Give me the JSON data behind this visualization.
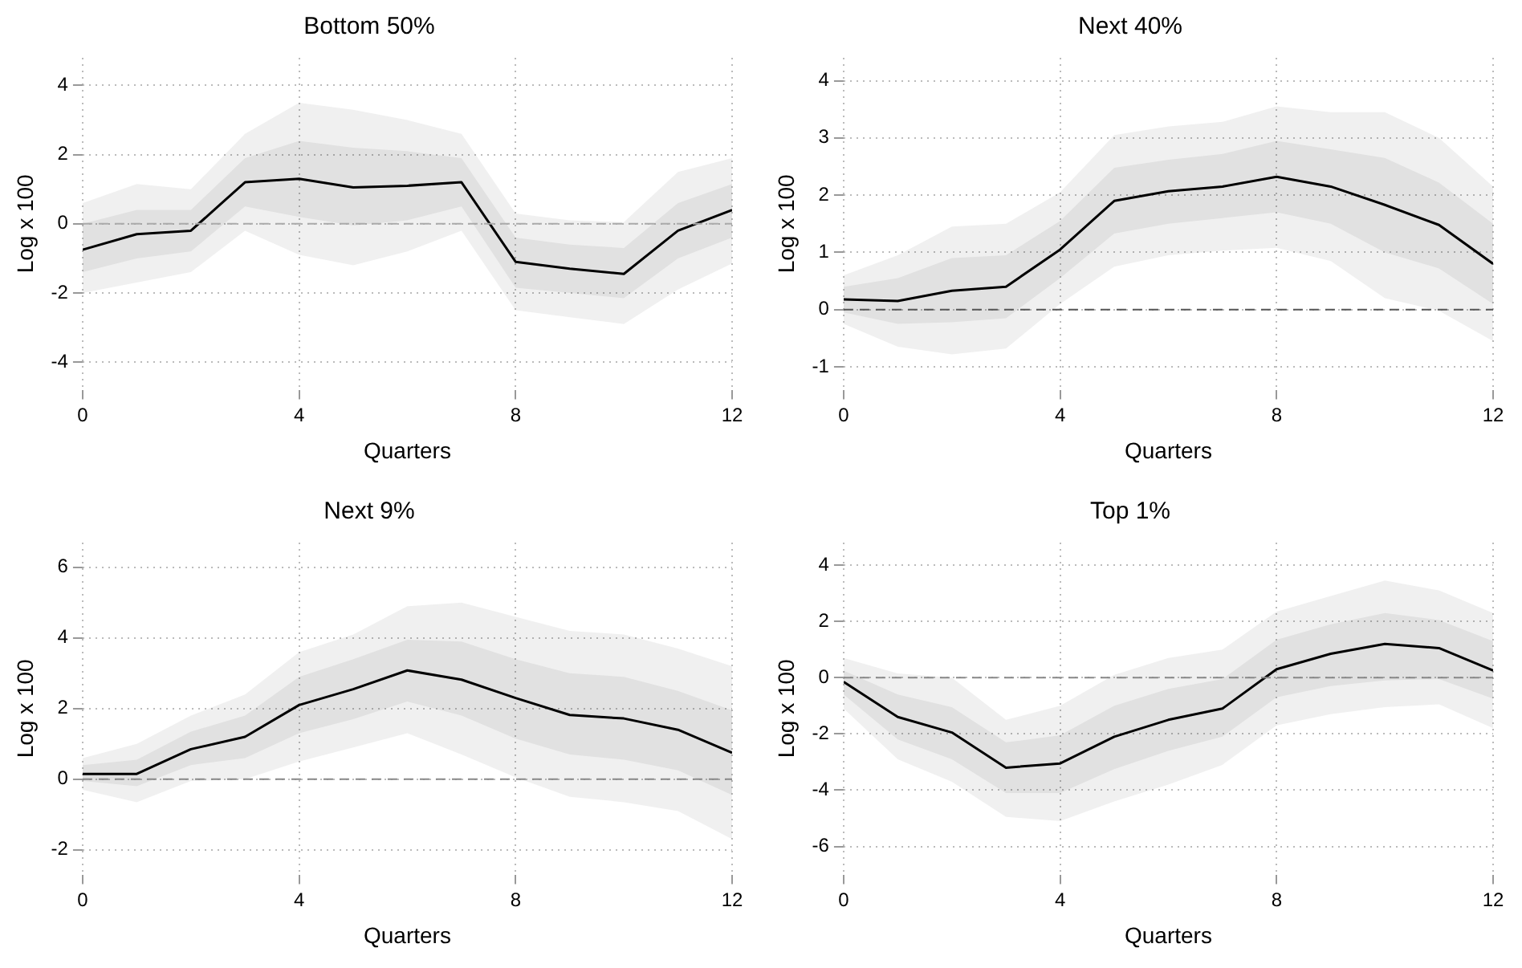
{
  "chart_data": [
    {
      "type": "line",
      "title": "Bottom 50%",
      "xlabel": "Quarters",
      "ylabel": "Log x 100",
      "x": [
        0,
        1,
        2,
        3,
        4,
        5,
        6,
        7,
        8,
        9,
        10,
        11,
        12
      ],
      "xlim": [
        0,
        12
      ],
      "xticks": [
        0,
        4,
        8,
        12
      ],
      "ylim": [
        -4.8,
        4.8
      ],
      "yticks": [
        -4,
        -2,
        0,
        2,
        4
      ],
      "grid": true,
      "legend": false,
      "marker": "none",
      "line_style": "solid",
      "series": [
        {
          "color": "#000000",
          "values": [
            -0.75,
            -0.3,
            -0.2,
            1.2,
            1.3,
            1.05,
            1.1,
            1.2,
            -1.1,
            -1.3,
            -1.45,
            -0.2,
            0.4
          ],
          "lower": [
            -1.4,
            -1.0,
            -0.8,
            0.5,
            0.2,
            -0.05,
            0.1,
            0.5,
            -1.85,
            -2.0,
            -2.15,
            -1.0,
            -0.4
          ],
          "upper": [
            0,
            0.4,
            0.4,
            1.9,
            2.4,
            2.2,
            2.1,
            1.9,
            -0.4,
            -0.6,
            -0.7,
            0.6,
            1.15
          ]
        },
        {
          "color": "#000000",
          "values": [
            null,
            null,
            null,
            null,
            null,
            null,
            null,
            null,
            null,
            null,
            null,
            null,
            null
          ],
          "lower": [
            -2.0,
            -1.7,
            -1.4,
            -0.2,
            -0.9,
            -1.2,
            -0.8,
            -0.2,
            -2.5,
            -2.7,
            -2.9,
            -1.9,
            -1.15
          ],
          "upper": [
            0.6,
            1.15,
            1.0,
            2.6,
            3.5,
            3.3,
            3.0,
            2.6,
            0.3,
            0.1,
            0.05,
            1.5,
            1.9
          ]
        }
      ],
      "ref_lines": [
        {
          "axis": "y",
          "value": 0,
          "color": "#aaaaaa",
          "line_style": "dashed"
        }
      ]
    },
    {
      "type": "line",
      "title": "Next 40%",
      "xlabel": "Quarters",
      "ylabel": "Log x 100",
      "x": [
        0,
        1,
        2,
        3,
        4,
        5,
        6,
        7,
        8,
        9,
        10,
        11,
        12
      ],
      "xlim": [
        0,
        12
      ],
      "xticks": [
        0,
        4,
        8,
        12
      ],
      "ylim": [
        -1.4,
        4.4
      ],
      "yticks": [
        -1,
        0,
        1,
        2,
        3,
        4
      ],
      "grid": true,
      "legend": false,
      "marker": "none",
      "line_style": "solid",
      "series": [
        {
          "color": "#000000",
          "values": [
            0.18,
            0.15,
            0.33,
            0.4,
            1.05,
            1.9,
            2.07,
            2.15,
            2.32,
            2.15,
            1.83,
            1.48,
            0.8
          ],
          "lower": [
            -0.05,
            -0.25,
            -0.22,
            -0.15,
            0.55,
            1.33,
            1.5,
            1.6,
            1.7,
            1.5,
            1.0,
            0.72,
            0.1
          ],
          "upper": [
            0.4,
            0.55,
            0.9,
            0.95,
            1.55,
            2.48,
            2.62,
            2.72,
            2.95,
            2.8,
            2.65,
            2.22,
            1.5
          ]
        },
        {
          "color": "#000000",
          "values": [
            null,
            null,
            null,
            null,
            null,
            null,
            null,
            null,
            null,
            null,
            null,
            null,
            null
          ],
          "lower": [
            -0.25,
            -0.65,
            -0.78,
            -0.68,
            0.1,
            0.75,
            0.95,
            1.03,
            1.08,
            0.85,
            0.2,
            -0.02,
            -0.55
          ],
          "upper": [
            0.6,
            0.95,
            1.45,
            1.5,
            2.05,
            3.05,
            3.2,
            3.28,
            3.55,
            3.45,
            3.45,
            3.0,
            2.15
          ]
        }
      ],
      "ref_lines": [
        {
          "axis": "y",
          "value": 0,
          "color": "#555555",
          "line_style": "dashed"
        }
      ]
    },
    {
      "type": "line",
      "title": "Next 9%",
      "xlabel": "Quarters",
      "ylabel": "Log x 100",
      "x": [
        0,
        1,
        2,
        3,
        4,
        5,
        6,
        7,
        8,
        9,
        10,
        11,
        12
      ],
      "xlim": [
        0,
        12
      ],
      "xticks": [
        0,
        4,
        8,
        12
      ],
      "ylim": [
        -2.7,
        6.7
      ],
      "yticks": [
        -2,
        0,
        2,
        4,
        6
      ],
      "grid": true,
      "legend": false,
      "marker": "none",
      "line_style": "solid",
      "series": [
        {
          "color": "#000000",
          "values": [
            0.15,
            0.15,
            0.85,
            1.2,
            2.1,
            2.55,
            3.08,
            2.82,
            2.3,
            1.82,
            1.72,
            1.4,
            0.75
          ],
          "lower": [
            -0.05,
            -0.2,
            0.4,
            0.6,
            1.3,
            1.7,
            2.2,
            1.8,
            1.15,
            0.7,
            0.55,
            0.25,
            -0.45
          ],
          "upper": [
            0.4,
            0.55,
            1.35,
            1.8,
            2.9,
            3.4,
            3.95,
            3.9,
            3.4,
            3.0,
            2.9,
            2.5,
            1.95
          ]
        },
        {
          "color": "#000000",
          "values": [
            null,
            null,
            null,
            null,
            null,
            null,
            null,
            null,
            null,
            null,
            null,
            null,
            null
          ],
          "lower": [
            -0.3,
            -0.65,
            -0.05,
            0,
            0.5,
            0.9,
            1.3,
            0.7,
            0.05,
            -0.5,
            -0.65,
            -0.9,
            -1.7
          ],
          "upper": [
            0.6,
            1.0,
            1.8,
            2.4,
            3.6,
            4.1,
            4.9,
            5.0,
            4.6,
            4.2,
            4.1,
            3.7,
            3.2
          ]
        }
      ],
      "ref_lines": [
        {
          "axis": "y",
          "value": 0,
          "color": "#888888",
          "line_style": "dashed"
        }
      ]
    },
    {
      "type": "line",
      "title": "Top 1%",
      "xlabel": "Quarters",
      "ylabel": "Log x 100",
      "x": [
        0,
        1,
        2,
        3,
        4,
        5,
        6,
        7,
        8,
        9,
        10,
        11,
        12
      ],
      "xlim": [
        0,
        12
      ],
      "xticks": [
        0,
        4,
        8,
        12
      ],
      "ylim": [
        -7,
        4.8
      ],
      "yticks": [
        -6,
        -4,
        -2,
        0,
        2,
        4
      ],
      "grid": true,
      "legend": false,
      "marker": "none",
      "line_style": "solid",
      "series": [
        {
          "color": "#000000",
          "values": [
            -0.15,
            -1.4,
            -1.95,
            -3.2,
            -3.05,
            -2.1,
            -1.5,
            -1.1,
            0.3,
            0.85,
            1.2,
            1.05,
            0.25
          ],
          "lower": [
            -0.6,
            -2.2,
            -2.9,
            -4.1,
            -4.1,
            -3.25,
            -2.6,
            -2.1,
            -0.7,
            -0.3,
            -0.1,
            -0.05,
            -0.75
          ],
          "upper": [
            0.25,
            -0.6,
            -1.05,
            -2.3,
            -2.05,
            -1.0,
            -0.4,
            -0.05,
            1.35,
            1.9,
            2.3,
            2.05,
            1.3
          ]
        },
        {
          "color": "#000000",
          "values": [
            null,
            null,
            null,
            null,
            null,
            null,
            null,
            null,
            null,
            null,
            null,
            null,
            null
          ],
          "lower": [
            -1.1,
            -2.9,
            -3.7,
            -4.95,
            -5.1,
            -4.4,
            -3.8,
            -3.1,
            -1.7,
            -1.3,
            -1.05,
            -0.95,
            -1.8
          ],
          "upper": [
            0.7,
            0.15,
            0.0,
            -1.5,
            -1.0,
            0.1,
            0.7,
            1.0,
            2.35,
            2.9,
            3.45,
            3.1,
            2.3
          ]
        }
      ],
      "ref_lines": [
        {
          "axis": "y",
          "value": 0,
          "color": "#888888",
          "line_style": "dashed"
        }
      ]
    }
  ]
}
